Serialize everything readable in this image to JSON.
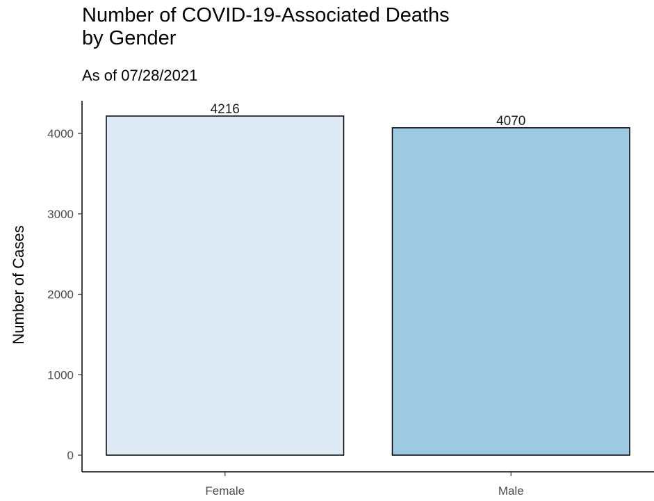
{
  "chart_data": {
    "type": "bar",
    "title": "Number of COVID-19-Associated Deaths\nby Gender",
    "subtitle": "As of 07/28/2021",
    "xlabel": "",
    "ylabel": "Number of Cases",
    "categories": [
      "Female",
      "Male"
    ],
    "values": [
      4216,
      4070
    ],
    "data_labels": [
      "4216",
      "4070"
    ],
    "bar_colors": [
      "#deebf7",
      "#9ecae1"
    ],
    "bar_outline": "#000000",
    "ylim": [
      0,
      4400
    ],
    "yticks": [
      0,
      1000,
      2000,
      3000,
      4000
    ],
    "ytick_labels": [
      "0",
      "1000",
      "2000",
      "3000",
      "4000"
    ],
    "grid": false,
    "legend": "none"
  }
}
